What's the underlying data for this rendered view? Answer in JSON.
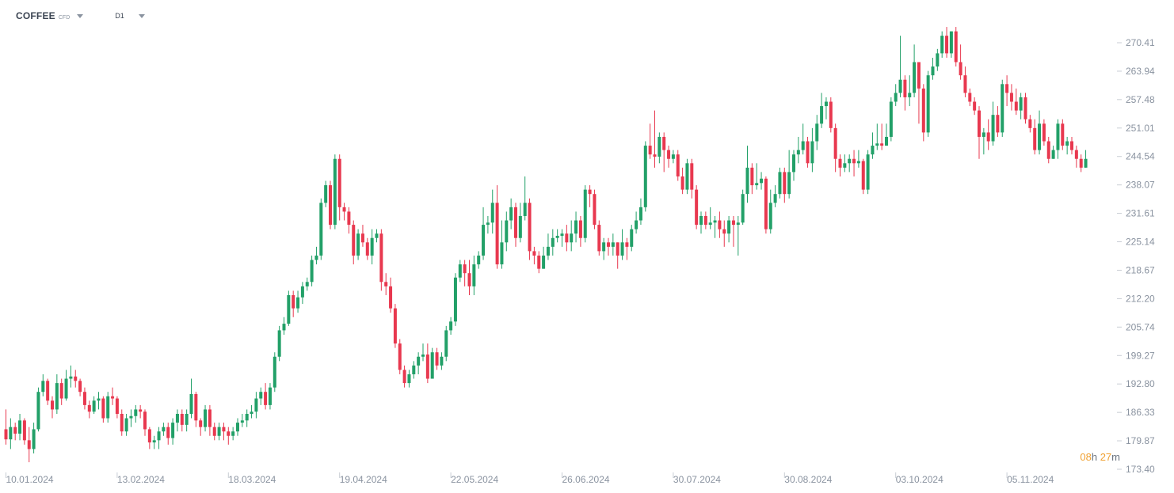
{
  "header": {
    "symbol": "COFFEE",
    "symbol_type": "CFD",
    "interval": "D1"
  },
  "countdown": {
    "hours": "08",
    "hours_unit": "h",
    "minutes": "27",
    "minutes_unit": "m"
  },
  "colors": {
    "up": "#22a068",
    "down": "#e8384f",
    "axis_text": "#8a93a0",
    "tick": "#c8cdd4",
    "countdown": "#f0a030"
  },
  "chart_data": {
    "type": "candlestick",
    "title": "",
    "ylim": [
      173.4,
      276.88
    ],
    "y_ticks": [
      173.4,
      179.87,
      186.33,
      192.8,
      199.27,
      205.74,
      212.2,
      218.67,
      225.14,
      231.61,
      238.07,
      244.54,
      251.01,
      257.48,
      263.94,
      270.41
    ],
    "y_tick_labels": [
      "173.40",
      "179.87",
      "186.33",
      "192.80",
      "199.27",
      "205.74",
      "212.20",
      "218.67",
      "225.14",
      "231.61",
      "238.07",
      "244.54",
      "251.01",
      "257.48",
      "263.94",
      "270.41"
    ],
    "x_tick_labels": [
      "10.01.2024",
      "13.02.2024",
      "18.03.2024",
      "19.04.2024",
      "22.05.2024",
      "26.06.2024",
      "30.07.2024",
      "30.08.2024",
      "03.10.2024",
      "05.11.2024"
    ],
    "x_tick_positions": [
      0,
      24,
      48,
      72,
      96,
      120,
      144,
      168,
      192,
      216
    ],
    "candles": [
      [
        182.5,
        180.2,
        187,
        179
      ],
      [
        180.2,
        183,
        185,
        178
      ],
      [
        183,
        181.5,
        184,
        180
      ],
      [
        181.5,
        184.5,
        186,
        180
      ],
      [
        184.5,
        180,
        185,
        179
      ],
      [
        180,
        178,
        183,
        175
      ],
      [
        178,
        182.5,
        184,
        177
      ],
      [
        182.5,
        191,
        192,
        182
      ],
      [
        191,
        193.5,
        195,
        190
      ],
      [
        193.5,
        189,
        194,
        188
      ],
      [
        189,
        187,
        190,
        185
      ],
      [
        187,
        193,
        195,
        186
      ],
      [
        193,
        189.5,
        194,
        188
      ],
      [
        189.5,
        194,
        196,
        189
      ],
      [
        194,
        194.5,
        197,
        192
      ],
      [
        194.5,
        193.5,
        196,
        192
      ],
      [
        193.5,
        191,
        194,
        190
      ],
      [
        191,
        188,
        192,
        187
      ],
      [
        188,
        186.5,
        189,
        185
      ],
      [
        186.5,
        189,
        190,
        186
      ],
      [
        189,
        189.5,
        191,
        187
      ],
      [
        189.5,
        185,
        190,
        184
      ],
      [
        185,
        190,
        191,
        184
      ],
      [
        190,
        189.5,
        192,
        188
      ],
      [
        189.5,
        186,
        190,
        185
      ],
      [
        186,
        182,
        187,
        181
      ],
      [
        182,
        185,
        186,
        181
      ],
      [
        185,
        185.5,
        187,
        183
      ],
      [
        185.5,
        187,
        188,
        184
      ],
      [
        187,
        186.5,
        188,
        185
      ],
      [
        186.5,
        182.5,
        187,
        181
      ],
      [
        182.5,
        179.5,
        183,
        178
      ],
      [
        179.5,
        180,
        181,
        178
      ],
      [
        180,
        182,
        183,
        178
      ],
      [
        182,
        183,
        184,
        181
      ],
      [
        183,
        180.5,
        184,
        179
      ],
      [
        180.5,
        184,
        185,
        179
      ],
      [
        184,
        186,
        187,
        182
      ],
      [
        186,
        183.5,
        187,
        182
      ],
      [
        183.5,
        186,
        187,
        182
      ],
      [
        186,
        190.5,
        194,
        185
      ],
      [
        190.5,
        184.5,
        191,
        183
      ],
      [
        184.5,
        183,
        185,
        181
      ],
      [
        183,
        187,
        188,
        182
      ],
      [
        187,
        183,
        188,
        181
      ],
      [
        183,
        181,
        184,
        180
      ],
      [
        181,
        183,
        184,
        180
      ],
      [
        183,
        182,
        184,
        180
      ],
      [
        182,
        181,
        183,
        179
      ],
      [
        181,
        182,
        183,
        180
      ],
      [
        182,
        184,
        185,
        181
      ],
      [
        184,
        184.5,
        186,
        183
      ],
      [
        184.5,
        186,
        187,
        183
      ],
      [
        186,
        186.5,
        188,
        185
      ],
      [
        186.5,
        189.5,
        191,
        185
      ],
      [
        189.5,
        191,
        192,
        188
      ],
      [
        191,
        188,
        193,
        187
      ],
      [
        188,
        192,
        193,
        187
      ],
      [
        192,
        199,
        200,
        191
      ],
      [
        199,
        205,
        206,
        198
      ],
      [
        205,
        206.5,
        208,
        204
      ],
      [
        206.5,
        213,
        214,
        206
      ],
      [
        213,
        210,
        214,
        208
      ],
      [
        210,
        212.5,
        214,
        209
      ],
      [
        212.5,
        215,
        216,
        211
      ],
      [
        215,
        216,
        217,
        214
      ],
      [
        216,
        221,
        222,
        215
      ],
      [
        221,
        222,
        224,
        220
      ],
      [
        222,
        234,
        235,
        221
      ],
      [
        234,
        238,
        239,
        233
      ],
      [
        238,
        229,
        239,
        228
      ],
      [
        229,
        244,
        245,
        228
      ],
      [
        244,
        233,
        245,
        230
      ],
      [
        233,
        232,
        234,
        230
      ],
      [
        232,
        229,
        233,
        227
      ],
      [
        229,
        222,
        230,
        220
      ],
      [
        222,
        227,
        228,
        221
      ],
      [
        227,
        225,
        229,
        224
      ],
      [
        225,
        222,
        226,
        221
      ],
      [
        222,
        226,
        228,
        220
      ],
      [
        226,
        227,
        228,
        225
      ],
      [
        227,
        216,
        228,
        214
      ],
      [
        216,
        215,
        218,
        213
      ],
      [
        215,
        210,
        217,
        209
      ],
      [
        210,
        202,
        211,
        201
      ],
      [
        202,
        196,
        203,
        195
      ],
      [
        196,
        193,
        197,
        192
      ],
      [
        193,
        195,
        196,
        192
      ],
      [
        195,
        197,
        198,
        194
      ],
      [
        197,
        199,
        200,
        195
      ],
      [
        199,
        199.5,
        202,
        198
      ],
      [
        199.5,
        194,
        202,
        193
      ],
      [
        194,
        200,
        201,
        195
      ],
      [
        200,
        197,
        201,
        196
      ],
      [
        197,
        199,
        200,
        196
      ],
      [
        199,
        205,
        206,
        198
      ],
      [
        205,
        207,
        208,
        204
      ],
      [
        207,
        217,
        218,
        206
      ],
      [
        217,
        220,
        221,
        216
      ],
      [
        220,
        218,
        221,
        215
      ],
      [
        218,
        215,
        221,
        213
      ],
      [
        215,
        220,
        222,
        213
      ],
      [
        220,
        222,
        223,
        219
      ],
      [
        222,
        229,
        233,
        221
      ],
      [
        229,
        229.5,
        231,
        227
      ],
      [
        229.5,
        234,
        237,
        227
      ],
      [
        234,
        220,
        238,
        219
      ],
      [
        220,
        225,
        230,
        219
      ],
      [
        225,
        230,
        232,
        223
      ],
      [
        230,
        233,
        235,
        228
      ],
      [
        233,
        226,
        234,
        224
      ],
      [
        226,
        231,
        234,
        225
      ],
      [
        231,
        234,
        240,
        230
      ],
      [
        234,
        223,
        235,
        221
      ],
      [
        223,
        222,
        224,
        220
      ],
      [
        222,
        219,
        223,
        218
      ],
      [
        219,
        222,
        224,
        219
      ],
      [
        222,
        224,
        227,
        221
      ],
      [
        224,
        226,
        228,
        222
      ],
      [
        226,
        226.5,
        228,
        225
      ],
      [
        226.5,
        227,
        228,
        224
      ],
      [
        227,
        225,
        229,
        223
      ],
      [
        225,
        227,
        230,
        223
      ],
      [
        227,
        230,
        232,
        225
      ],
      [
        230,
        226,
        231,
        224
      ],
      [
        226,
        237,
        238,
        225
      ],
      [
        237,
        236,
        238,
        233
      ],
      [
        236,
        229,
        237,
        228
      ],
      [
        229,
        223,
        230,
        222
      ],
      [
        223,
        225,
        226,
        221
      ],
      [
        225,
        224,
        226,
        222
      ],
      [
        224,
        225,
        227,
        222
      ],
      [
        225,
        222,
        225,
        219
      ],
      [
        222,
        225,
        228,
        221
      ],
      [
        225,
        224,
        226,
        221
      ],
      [
        224,
        228,
        229,
        223
      ],
      [
        228,
        230,
        232,
        227
      ],
      [
        230,
        233,
        235,
        229
      ],
      [
        233,
        247,
        248,
        232
      ],
      [
        247,
        245,
        252,
        244
      ],
      [
        245,
        244.5,
        255,
        242
      ],
      [
        244.5,
        249,
        250,
        243
      ],
      [
        249,
        246,
        250,
        241
      ],
      [
        246,
        244,
        247,
        242
      ],
      [
        244,
        245,
        246,
        243
      ],
      [
        245,
        240,
        246,
        239
      ],
      [
        240,
        237,
        242,
        236
      ],
      [
        237,
        243,
        244,
        236
      ],
      [
        243,
        237,
        244,
        235
      ],
      [
        237,
        229,
        238,
        228
      ],
      [
        229,
        231,
        232,
        227
      ],
      [
        231,
        229,
        232,
        228
      ],
      [
        229,
        229.5,
        233,
        228
      ],
      [
        229.5,
        230,
        231,
        226
      ],
      [
        230,
        228,
        232,
        226
      ],
      [
        228,
        227,
        230,
        224
      ],
      [
        227,
        230,
        231,
        225
      ],
      [
        230,
        229,
        231,
        224
      ],
      [
        229,
        229.5,
        231,
        222
      ],
      [
        229.5,
        236,
        237,
        229
      ],
      [
        236,
        242,
        247,
        234
      ],
      [
        242,
        238,
        243,
        236
      ],
      [
        238,
        238.5,
        243,
        237
      ],
      [
        238.5,
        239.5,
        241,
        237
      ],
      [
        239.5,
        228,
        240,
        227
      ],
      [
        228,
        234,
        237,
        227
      ],
      [
        234,
        236,
        238,
        233
      ],
      [
        236,
        241,
        242,
        235
      ],
      [
        241,
        236,
        242,
        234
      ],
      [
        236,
        241,
        246,
        235
      ],
      [
        241,
        245,
        246,
        239
      ],
      [
        245,
        246,
        249,
        243
      ],
      [
        246,
        248,
        252,
        245
      ],
      [
        248,
        243,
        249,
        242
      ],
      [
        243,
        248,
        251,
        241
      ],
      [
        248,
        252,
        254,
        246
      ],
      [
        252,
        256,
        259,
        251
      ],
      [
        256,
        257,
        258,
        253
      ],
      [
        257,
        251,
        258,
        250
      ],
      [
        251,
        244,
        252,
        241
      ],
      [
        244,
        242,
        245,
        240
      ],
      [
        242,
        243,
        245,
        241
      ],
      [
        243,
        244,
        245,
        241
      ],
      [
        244,
        243,
        246,
        240
      ],
      [
        243,
        243.5,
        246,
        242
      ],
      [
        243.5,
        237,
        244,
        236
      ],
      [
        237,
        245,
        246,
        236
      ],
      [
        245,
        247,
        250,
        244
      ],
      [
        247,
        247.5,
        252,
        246
      ],
      [
        247.5,
        247,
        252,
        246
      ],
      [
        247,
        249,
        252,
        247
      ],
      [
        249,
        257,
        258,
        248
      ],
      [
        257,
        259,
        261,
        256
      ],
      [
        259,
        262,
        272,
        258
      ],
      [
        262,
        258,
        263,
        255
      ],
      [
        258,
        259,
        263,
        256
      ],
      [
        259,
        266,
        270,
        258
      ],
      [
        266,
        260,
        266,
        252
      ],
      [
        260,
        250,
        261,
        248
      ],
      [
        250,
        263,
        264,
        249
      ],
      [
        263,
        265,
        267,
        262
      ],
      [
        265,
        268,
        269,
        264
      ],
      [
        268,
        272,
        273,
        267
      ],
      [
        272,
        268,
        274,
        267
      ],
      [
        268,
        273,
        273,
        267
      ],
      [
        273,
        266,
        274,
        265
      ],
      [
        266,
        263,
        270,
        262
      ],
      [
        263,
        259,
        265,
        258
      ],
      [
        259,
        257,
        260,
        256
      ],
      [
        257,
        255,
        258,
        254
      ],
      [
        255,
        249,
        256,
        244
      ],
      [
        249,
        250,
        251,
        245
      ],
      [
        250,
        248,
        253,
        246
      ],
      [
        248,
        254,
        257,
        247
      ],
      [
        254,
        250,
        256,
        249
      ],
      [
        250,
        261,
        262,
        249
      ],
      [
        261,
        259,
        263,
        256
      ],
      [
        259,
        257,
        261,
        255
      ],
      [
        257,
        255,
        260,
        254
      ],
      [
        255,
        258,
        259,
        253
      ],
      [
        258,
        253,
        259,
        252
      ],
      [
        253,
        251,
        254,
        250
      ],
      [
        251,
        246,
        253,
        245
      ],
      [
        246,
        252,
        255,
        245
      ],
      [
        252,
        248,
        253,
        247
      ],
      [
        248,
        244,
        249,
        243
      ],
      [
        244,
        246,
        247,
        244
      ],
      [
        246,
        252,
        253,
        244
      ],
      [
        252,
        247,
        253,
        246
      ],
      [
        247,
        248,
        249,
        245
      ],
      [
        248,
        246,
        249,
        245
      ],
      [
        246,
        244,
        247,
        242
      ],
      [
        244,
        242,
        245,
        241
      ],
      [
        242,
        244,
        246,
        242
      ]
    ]
  }
}
